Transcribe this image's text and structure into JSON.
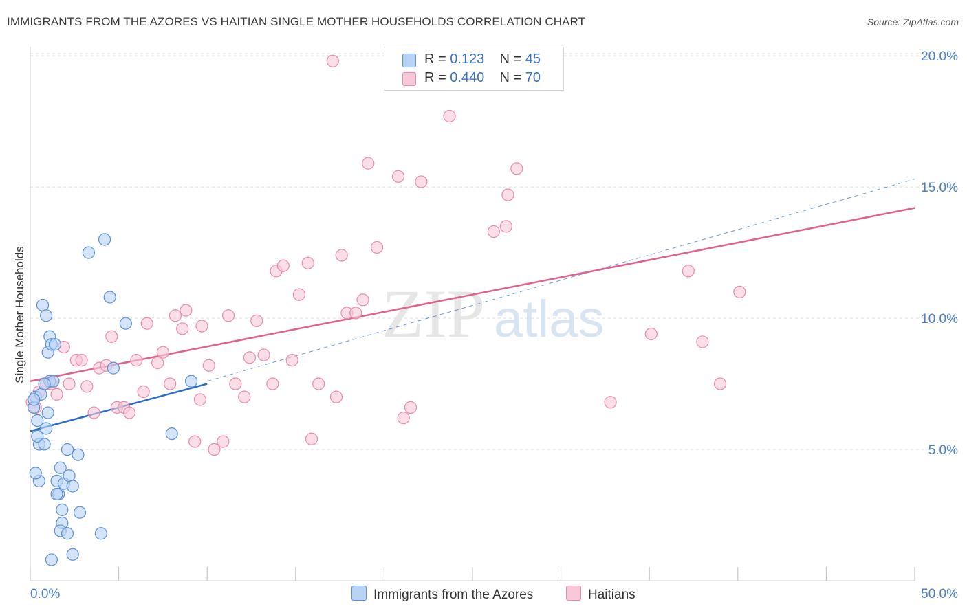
{
  "header": {
    "title": "IMMIGRANTS FROM THE AZORES VS HAITIAN SINGLE MOTHER HOUSEHOLDS CORRELATION CHART",
    "source": "Source: ZipAtlas.com"
  },
  "legend": {
    "rows": [
      {
        "r_label": "R =",
        "r_value": "0.123",
        "n_label": "N =",
        "n_value": "45"
      },
      {
        "r_label": "R =",
        "r_value": "0.440",
        "n_label": "N =",
        "n_value": "70"
      }
    ]
  },
  "watermark": {
    "part1": "ZIP",
    "part2": "atlas"
  },
  "colors": {
    "series1_fill": "#b8d3f5",
    "series1_stroke": "#5b8fd6",
    "series1_line": "#2a6ccc",
    "series2_fill": "#f8c8d8",
    "series2_stroke": "#e88aa8",
    "series2_line": "#e06090",
    "axis_text": "#4a7fc6",
    "grid": "#dcdcdc"
  },
  "chart_data": {
    "type": "scatter",
    "title": "IMMIGRANTS FROM THE AZORES VS HAITIAN SINGLE MOTHER HOUSEHOLDS CORRELATION CHART",
    "xlabel": "",
    "ylabel": "Single Mother Households",
    "xlim": [
      0,
      50
    ],
    "ylim": [
      0,
      20.5
    ],
    "x_tick_labels": [
      "0.0%",
      "50.0%"
    ],
    "y_ticks": [
      5,
      10,
      15,
      20
    ],
    "y_tick_labels": [
      "5.0%",
      "10.0%",
      "15.0%",
      "20.0%"
    ],
    "grid": "horizontal dashed",
    "legend_position": "bottom-center",
    "series": [
      {
        "name": "Immigrants from the Azores",
        "stats": {
          "R": 0.123,
          "N": 45
        },
        "trend": {
          "x": [
            0,
            10
          ],
          "y": [
            5.7,
            7.5
          ]
        },
        "points": [
          [
            0.2,
            6.6
          ],
          [
            0.3,
            7.0
          ],
          [
            0.4,
            6.1
          ],
          [
            0.5,
            5.2
          ],
          [
            0.4,
            5.5
          ],
          [
            0.6,
            7.1
          ],
          [
            0.8,
            5.2
          ],
          [
            0.9,
            5.8
          ],
          [
            0.7,
            10.5
          ],
          [
            0.9,
            10.1
          ],
          [
            1.0,
            8.7
          ],
          [
            1.0,
            6.4
          ],
          [
            1.1,
            9.3
          ],
          [
            1.1,
            7.6
          ],
          [
            1.2,
            9.0
          ],
          [
            1.3,
            7.6
          ],
          [
            1.4,
            9.0
          ],
          [
            0.8,
            7.5
          ],
          [
            1.5,
            3.8
          ],
          [
            1.6,
            3.3
          ],
          [
            1.7,
            4.3
          ],
          [
            1.5,
            3.3
          ],
          [
            1.8,
            2.7
          ],
          [
            1.8,
            2.2
          ],
          [
            1.7,
            1.9
          ],
          [
            1.9,
            3.7
          ],
          [
            2.1,
            1.8
          ],
          [
            2.2,
            4.0
          ],
          [
            2.1,
            5.0
          ],
          [
            2.4,
            3.6
          ],
          [
            2.7,
            4.8
          ],
          [
            2.8,
            2.6
          ],
          [
            2.4,
            1.0
          ],
          [
            1.2,
            0.8
          ],
          [
            4.0,
            1.8
          ],
          [
            3.3,
            12.5
          ],
          [
            4.2,
            13.0
          ],
          [
            4.5,
            10.8
          ],
          [
            4.7,
            8.1
          ],
          [
            5.4,
            9.8
          ],
          [
            8.0,
            5.6
          ],
          [
            9.1,
            7.6
          ],
          [
            0.5,
            3.8
          ],
          [
            0.3,
            4.1
          ],
          [
            0.2,
            6.9
          ]
        ]
      },
      {
        "name": "Haitians",
        "stats": {
          "R": 0.44,
          "N": 70
        },
        "trend": {
          "x": [
            0,
            50
          ],
          "y": [
            7.6,
            14.2
          ]
        },
        "extension": {
          "x": [
            10,
            50
          ],
          "y": [
            7.6,
            15.3
          ]
        },
        "points": [
          [
            0.1,
            6.8
          ],
          [
            0.3,
            6.6
          ],
          [
            0.5,
            7.2
          ],
          [
            0.9,
            7.5
          ],
          [
            1.2,
            7.5
          ],
          [
            1.5,
            7.1
          ],
          [
            1.9,
            8.9
          ],
          [
            2.2,
            7.5
          ],
          [
            2.6,
            8.4
          ],
          [
            2.9,
            8.4
          ],
          [
            3.2,
            7.4
          ],
          [
            3.6,
            6.4
          ],
          [
            3.9,
            8.1
          ],
          [
            4.3,
            8.2
          ],
          [
            4.6,
            9.3
          ],
          [
            4.9,
            6.6
          ],
          [
            5.3,
            6.6
          ],
          [
            5.6,
            6.4
          ],
          [
            6.0,
            8.4
          ],
          [
            6.4,
            7.2
          ],
          [
            6.6,
            9.8
          ],
          [
            7.2,
            8.3
          ],
          [
            7.5,
            8.7
          ],
          [
            7.9,
            7.5
          ],
          [
            8.2,
            10.1
          ],
          [
            8.6,
            9.6
          ],
          [
            8.8,
            10.3
          ],
          [
            9.3,
            5.3
          ],
          [
            9.6,
            6.9
          ],
          [
            9.7,
            9.7
          ],
          [
            10.1,
            8.2
          ],
          [
            10.4,
            5.0
          ],
          [
            10.9,
            5.3
          ],
          [
            11.2,
            10.1
          ],
          [
            11.6,
            7.5
          ],
          [
            12.1,
            7.0
          ],
          [
            12.4,
            8.5
          ],
          [
            12.8,
            9.9
          ],
          [
            13.2,
            8.6
          ],
          [
            13.7,
            7.5
          ],
          [
            13.9,
            11.8
          ],
          [
            14.3,
            12.0
          ],
          [
            14.8,
            8.4
          ],
          [
            15.2,
            10.9
          ],
          [
            15.7,
            12.1
          ],
          [
            15.9,
            5.4
          ],
          [
            16.3,
            7.5
          ],
          [
            17.1,
            19.8
          ],
          [
            17.3,
            7.0
          ],
          [
            17.6,
            12.4
          ],
          [
            17.9,
            10.2
          ],
          [
            18.4,
            10.2
          ],
          [
            18.8,
            10.7
          ],
          [
            19.1,
            15.9
          ],
          [
            19.6,
            12.7
          ],
          [
            20.8,
            15.4
          ],
          [
            21.1,
            6.2
          ],
          [
            21.5,
            6.6
          ],
          [
            22.1,
            15.2
          ],
          [
            23.7,
            17.7
          ],
          [
            26.2,
            13.3
          ],
          [
            26.9,
            13.5
          ],
          [
            27.5,
            15.7
          ],
          [
            27.0,
            14.7
          ],
          [
            32.8,
            6.8
          ],
          [
            35.1,
            9.4
          ],
          [
            37.2,
            11.8
          ],
          [
            38.0,
            9.1
          ],
          [
            39.0,
            7.5
          ],
          [
            40.1,
            11.0
          ]
        ]
      }
    ]
  },
  "bottom_legend": {
    "items": [
      {
        "label": "Immigrants from the Azores"
      },
      {
        "label": "Haitians"
      }
    ]
  }
}
